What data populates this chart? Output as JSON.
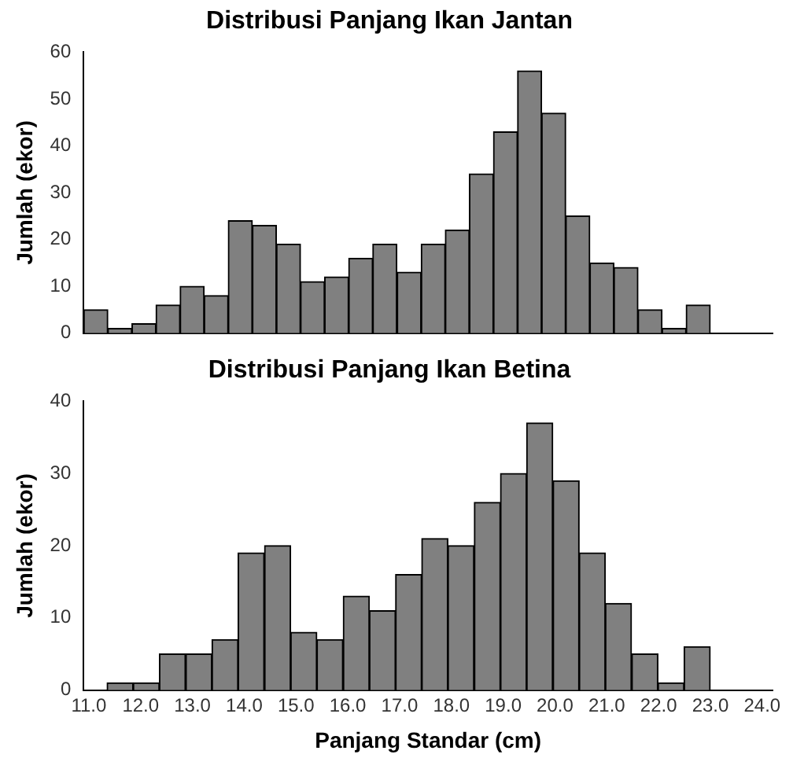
{
  "chart_data": [
    {
      "type": "histogram",
      "title": "Distribusi Panjang Ikan Jantan",
      "ylabel": "Jumlah (ekor)",
      "color": "#808080",
      "bins": [
        10.9,
        11.37,
        11.83,
        12.3,
        12.76,
        13.23,
        13.69,
        14.16,
        14.62,
        15.09,
        15.55,
        16.02,
        16.48,
        16.95,
        17.42,
        17.88,
        18.35,
        18.81,
        19.28,
        19.74,
        20.21,
        20.67,
        21.14,
        21.6,
        22.07,
        22.53,
        23.0
      ],
      "values": [
        5,
        1,
        2,
        6,
        10,
        8,
        24,
        23,
        19,
        11,
        12,
        16,
        19,
        13,
        19,
        22,
        34,
        43,
        56,
        47,
        25,
        15,
        14,
        5,
        1,
        6
      ],
      "xlim": [
        10.9,
        24.2
      ],
      "xticks": [
        11,
        12,
        13,
        14,
        15,
        16,
        17,
        18,
        19,
        20,
        21,
        22,
        23,
        24
      ],
      "ylim": [
        0,
        60
      ],
      "yticks": [
        0,
        10,
        20,
        30,
        40,
        50,
        60
      ],
      "tick_labels": "y",
      "grid": false
    },
    {
      "type": "histogram",
      "title": "Distribusi Panjang Ikan Betina",
      "ylabel": "Jumlah (ekor)",
      "xlabel": "Panjang Standar (cm)",
      "color": "#808080",
      "bins": [
        11.35,
        11.86,
        12.36,
        12.87,
        13.38,
        13.88,
        14.39,
        14.9,
        15.4,
        15.91,
        16.42,
        16.92,
        17.43,
        17.93,
        18.44,
        18.95,
        19.45,
        19.96,
        20.47,
        20.97,
        21.48,
        21.99,
        22.49,
        23.0
      ],
      "values": [
        1,
        1,
        5,
        5,
        7,
        19,
        20,
        8,
        7,
        13,
        11,
        16,
        21,
        20,
        26,
        30,
        37,
        29,
        19,
        12,
        5,
        1,
        6
      ],
      "xlim": [
        10.9,
        24.2
      ],
      "xticks": [
        {
          "value": 11,
          "label": "11.0"
        },
        {
          "value": 12,
          "label": "12.0"
        },
        {
          "value": 13,
          "label": "13.0"
        },
        {
          "value": 14,
          "label": "14.0"
        },
        {
          "value": 15,
          "label": "15.0"
        },
        {
          "value": 16,
          "label": "16.0"
        },
        {
          "value": 17,
          "label": "17.0"
        },
        {
          "value": 18,
          "label": "18.0"
        },
        {
          "value": 19,
          "label": "19.0"
        },
        {
          "value": 20,
          "label": "20.0"
        },
        {
          "value": 21,
          "label": "21.0"
        },
        {
          "value": 22,
          "label": "22.0"
        },
        {
          "value": 23,
          "label": "23.0"
        },
        {
          "value": 24,
          "label": "24.0"
        }
      ],
      "ylim": [
        0,
        40
      ],
      "yticks": [
        0,
        10,
        20,
        30,
        40
      ],
      "grid": false
    }
  ]
}
